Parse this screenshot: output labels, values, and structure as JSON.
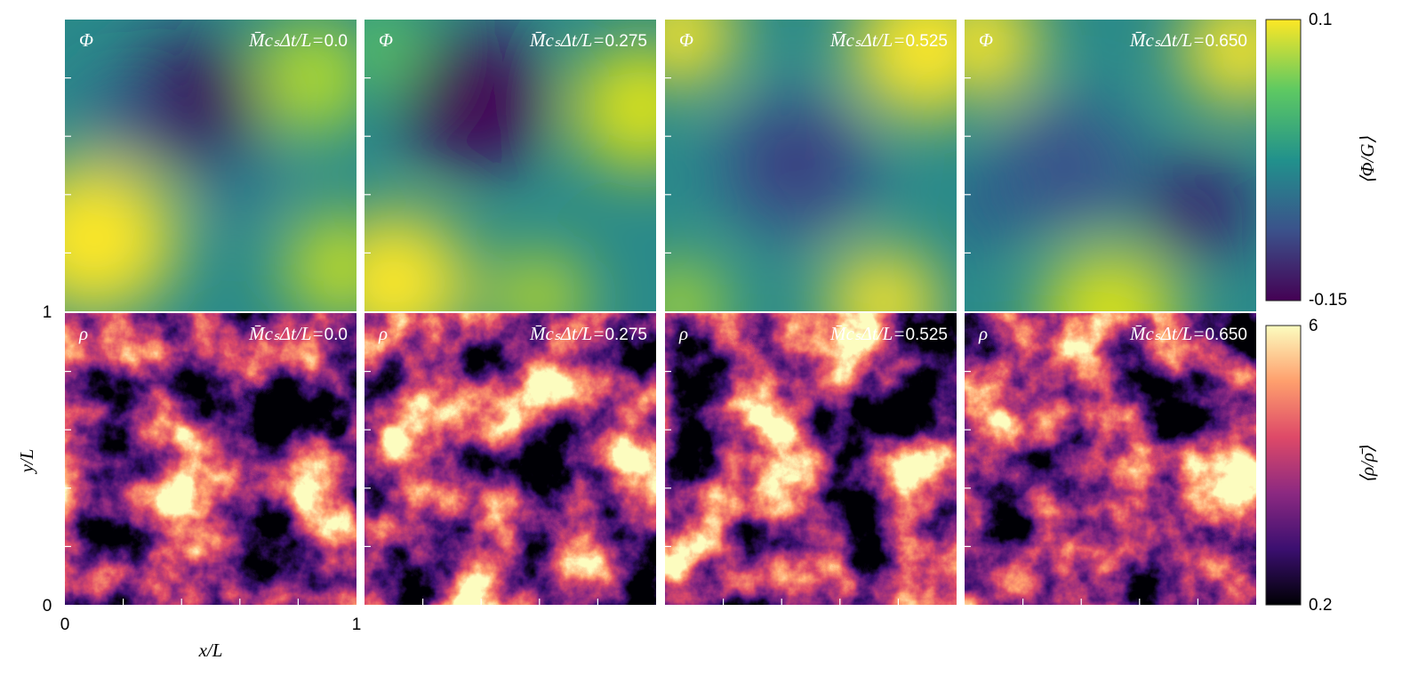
{
  "panels": {
    "top_symbol": "Φ",
    "bottom_symbol": "ρ",
    "time_prefix": "M̄cₛΔt/L=",
    "times": [
      "0.0",
      "0.275",
      "0.525",
      "0.650"
    ]
  },
  "axes": {
    "x_label": "x/L",
    "y_label": "y/L",
    "x_ticks": [
      0,
      1
    ],
    "y_ticks": [
      0,
      1
    ]
  },
  "colorbars": [
    {
      "label": "⟨Φ/G⟩",
      "max": 0.1,
      "min": -0.15
    },
    {
      "label": "⟨ρ/ρ̄⟩",
      "max": 6,
      "min": 0.2
    }
  ]
}
